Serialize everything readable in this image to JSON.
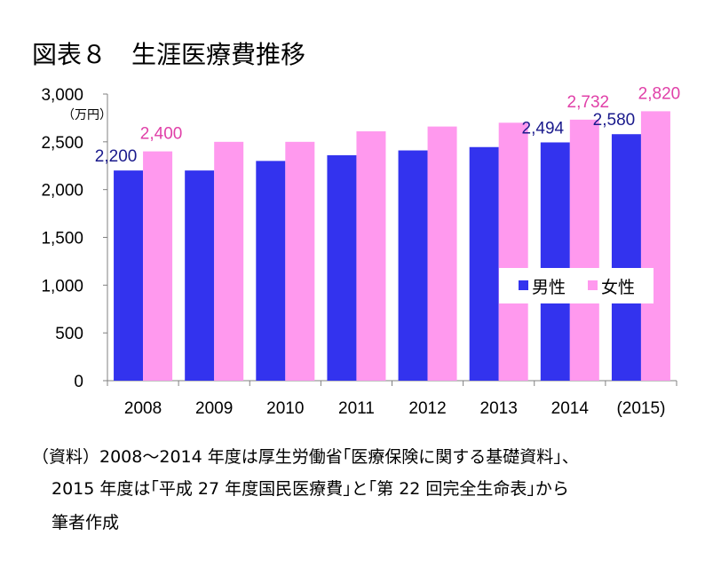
{
  "figure_title": "図表８　生涯医療費推移",
  "source_lines": [
    "（資料）2008～2014 年度は厚生労働省｢医療保険に関する基礎資料｣、",
    "2015 年度は｢平成 27 年度国民医療費｣と｢第 22 回完全生命表｣から",
    "筆者作成"
  ],
  "chart_data": {
    "type": "bar",
    "unit_label": "（万円）",
    "categories": [
      "2008",
      "2009",
      "2010",
      "2011",
      "2012",
      "2013",
      "2014",
      "(2015)"
    ],
    "ylim": [
      0,
      3000
    ],
    "yticks": [
      0,
      500,
      1000,
      1500,
      2000,
      2500,
      3000
    ],
    "ytick_labels": [
      "0",
      "500",
      "1,000",
      "1,500",
      "2,000",
      "2,500",
      "3,000"
    ],
    "grid": false,
    "legend_position": "center-right",
    "series": [
      {
        "name": "男性",
        "color": "#3333ee",
        "label_color": "#1a1a8c",
        "values": [
          2200,
          2200,
          2300,
          2360,
          2410,
          2445,
          2494,
          2580
        ],
        "data_labels": [
          "2,200",
          null,
          null,
          null,
          null,
          null,
          "2,494",
          "2,580"
        ]
      },
      {
        "name": "女性",
        "color": "#ff99ee",
        "label_color": "#e040a8",
        "values": [
          2400,
          2500,
          2500,
          2610,
          2660,
          2700,
          2732,
          2820
        ],
        "data_labels": [
          "2,400",
          null,
          null,
          null,
          null,
          null,
          "2,732",
          "2,820"
        ]
      }
    ]
  }
}
